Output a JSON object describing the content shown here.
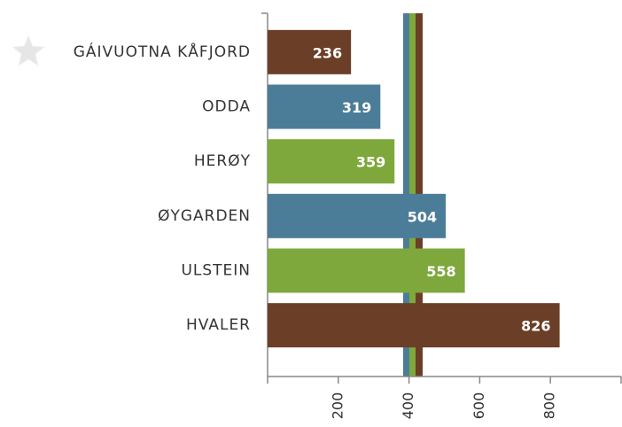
{
  "chart_data": {
    "type": "bar",
    "orientation": "horizontal",
    "categories": [
      "GÁIVUOTNA KÅFJORD",
      "ODDA",
      "HERØY",
      "ØYGARDEN",
      "ULSTEIN",
      "HVALER"
    ],
    "values": [
      236,
      319,
      359,
      504,
      558,
      826
    ],
    "colors": [
      "#6b3f27",
      "#4b7d98",
      "#7ea83c",
      "#4b7d98",
      "#7ea83c",
      "#6b3f27"
    ],
    "xlim": [
      0,
      1000
    ],
    "xticks": [
      200,
      400,
      600,
      800
    ]
  }
}
